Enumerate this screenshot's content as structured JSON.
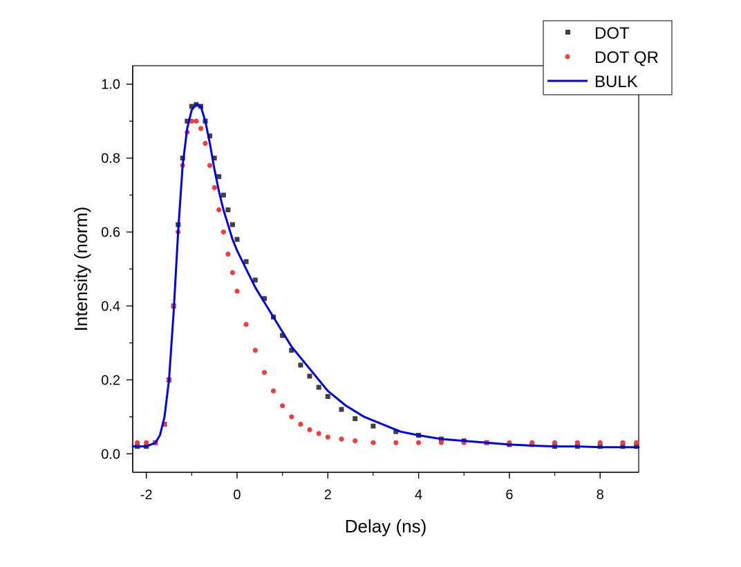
{
  "chart_data": {
    "type": "scatter",
    "title": "",
    "xlabel": "Delay (ns)",
    "ylabel": "Intensity (norm)",
    "xlim": [
      -2.3,
      8.85
    ],
    "ylim": [
      -0.05,
      1.05
    ],
    "xticks": [
      -2,
      0,
      2,
      4,
      6,
      8
    ],
    "xtick_labels": [
      "-2",
      "0",
      "2",
      "4",
      "6",
      "8"
    ],
    "yticks": [
      0.0,
      0.2,
      0.4,
      0.6,
      0.8,
      1.0
    ],
    "ytick_labels": [
      "0.0",
      "0.2",
      "0.4",
      "0.6",
      "0.8",
      "1.0"
    ],
    "grid": false,
    "legend_position": "top-right",
    "series": [
      {
        "name": "DOT",
        "kind": "scatter",
        "marker": "square",
        "color": "#404040",
        "x": [
          -2.2,
          -2.0,
          -1.8,
          -1.6,
          -1.5,
          -1.4,
          -1.3,
          -1.2,
          -1.1,
          -1.0,
          -0.9,
          -0.8,
          -0.7,
          -0.6,
          -0.5,
          -0.4,
          -0.3,
          -0.2,
          -0.1,
          0.0,
          0.2,
          0.4,
          0.6,
          0.8,
          1.0,
          1.2,
          1.4,
          1.6,
          1.8,
          2.0,
          2.3,
          2.6,
          3.0,
          3.5,
          4.0,
          4.5,
          5.0,
          5.5,
          6.0,
          6.5,
          7.0,
          7.5,
          8.0,
          8.5,
          8.8
        ],
        "y": [
          0.02,
          0.02,
          0.03,
          0.08,
          0.2,
          0.4,
          0.62,
          0.8,
          0.9,
          0.94,
          0.945,
          0.94,
          0.9,
          0.86,
          0.8,
          0.75,
          0.7,
          0.66,
          0.62,
          0.58,
          0.52,
          0.47,
          0.42,
          0.37,
          0.32,
          0.28,
          0.24,
          0.21,
          0.18,
          0.155,
          0.12,
          0.095,
          0.075,
          0.06,
          0.05,
          0.04,
          0.035,
          0.03,
          0.025,
          0.025,
          0.02,
          0.02,
          0.02,
          0.02,
          0.02
        ]
      },
      {
        "name": "DOT QR",
        "kind": "scatter",
        "marker": "circle",
        "color": "#f03c3c",
        "x": [
          -2.2,
          -2.0,
          -1.8,
          -1.6,
          -1.5,
          -1.4,
          -1.3,
          -1.2,
          -1.1,
          -1.0,
          -0.9,
          -0.8,
          -0.7,
          -0.6,
          -0.5,
          -0.4,
          -0.3,
          -0.2,
          -0.1,
          0.0,
          0.2,
          0.4,
          0.6,
          0.8,
          1.0,
          1.2,
          1.4,
          1.6,
          1.8,
          2.0,
          2.3,
          2.6,
          3.0,
          3.5,
          4.0,
          4.5,
          5.0,
          5.5,
          6.0,
          6.5,
          7.0,
          7.5,
          8.0,
          8.5,
          8.8
        ],
        "y": [
          0.03,
          0.03,
          0.03,
          0.08,
          0.2,
          0.4,
          0.6,
          0.78,
          0.87,
          0.9,
          0.9,
          0.88,
          0.84,
          0.78,
          0.72,
          0.66,
          0.6,
          0.54,
          0.49,
          0.44,
          0.35,
          0.28,
          0.22,
          0.17,
          0.13,
          0.1,
          0.08,
          0.065,
          0.055,
          0.045,
          0.04,
          0.035,
          0.03,
          0.03,
          0.03,
          0.03,
          0.03,
          0.03,
          0.03,
          0.03,
          0.03,
          0.03,
          0.03,
          0.03,
          0.03
        ]
      },
      {
        "name": "BULK",
        "kind": "line",
        "color": "#0000e6",
        "x": [
          -2.3,
          -2.0,
          -1.8,
          -1.7,
          -1.6,
          -1.5,
          -1.4,
          -1.3,
          -1.2,
          -1.1,
          -1.0,
          -0.9,
          -0.8,
          -0.7,
          -0.6,
          -0.5,
          -0.4,
          -0.3,
          -0.2,
          -0.1,
          0.0,
          0.2,
          0.4,
          0.6,
          0.8,
          1.0,
          1.2,
          1.4,
          1.6,
          1.8,
          2.0,
          2.4,
          2.8,
          3.2,
          3.6,
          4.0,
          4.5,
          5.0,
          5.5,
          6.0,
          6.5,
          7.0,
          7.5,
          8.0,
          8.5,
          8.85
        ],
        "y": [
          0.02,
          0.02,
          0.03,
          0.05,
          0.1,
          0.2,
          0.38,
          0.6,
          0.78,
          0.88,
          0.93,
          0.945,
          0.94,
          0.9,
          0.84,
          0.77,
          0.71,
          0.66,
          0.62,
          0.58,
          0.55,
          0.5,
          0.45,
          0.41,
          0.37,
          0.33,
          0.29,
          0.26,
          0.23,
          0.2,
          0.17,
          0.13,
          0.1,
          0.08,
          0.06,
          0.05,
          0.04,
          0.035,
          0.03,
          0.025,
          0.022,
          0.02,
          0.02,
          0.018,
          0.018,
          0.018
        ]
      }
    ]
  }
}
